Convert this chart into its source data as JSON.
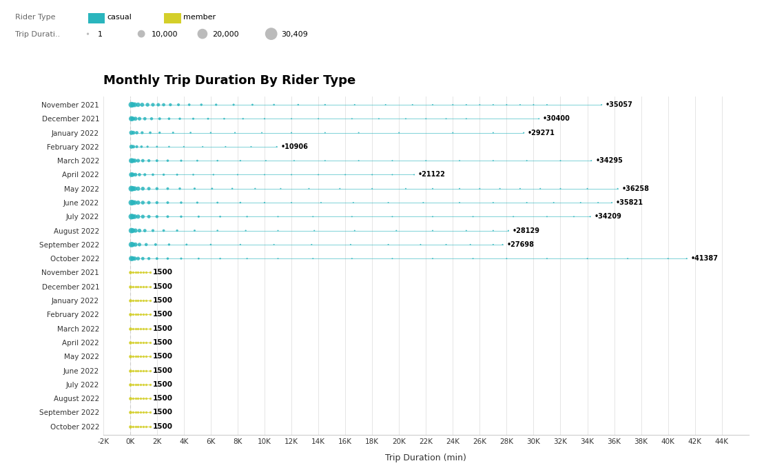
{
  "title": "Monthly Trip Duration By Rider Type",
  "xlabel": "Trip Duration (min)",
  "casual_color": "#2ab5bd",
  "member_color": "#d4cf2a",
  "background_color": "#ffffff",
  "months": [
    "November 2021",
    "December 2021",
    "January 2022",
    "February 2022",
    "March 2022",
    "April 2022",
    "May 2022",
    "June 2022",
    "July 2022",
    "August 2022",
    "September 2022",
    "October 2022"
  ],
  "casual_max": [
    35057,
    30400,
    29271,
    10906,
    34295,
    21122,
    36258,
    35821,
    34209,
    28129,
    27698,
    41387
  ],
  "member_max_label": 1500,
  "xlim": [
    -2000,
    46000
  ],
  "xtick_vals": [
    -2000,
    0,
    2000,
    4000,
    6000,
    8000,
    10000,
    12000,
    14000,
    16000,
    18000,
    20000,
    22000,
    24000,
    26000,
    28000,
    30000,
    32000,
    34000,
    36000,
    38000,
    40000,
    42000,
    44000
  ],
  "xticklabels": [
    "-2K",
    "0K",
    "2K",
    "4K",
    "6K",
    "8K",
    "10K",
    "12K",
    "14K",
    "16K",
    "18K",
    "20K",
    "22K",
    "24K",
    "26K",
    "28K",
    "30K",
    "32K",
    "34K",
    "36K",
    "38K",
    "40K",
    "42K",
    "44K"
  ],
  "casual_dots": {
    "November 2021": [
      100,
      200,
      350,
      600,
      900,
      1300,
      1700,
      2100,
      2500,
      3000,
      3600,
      4400,
      5300,
      6400,
      7700,
      9100,
      10700,
      12500,
      14500,
      16700,
      19000,
      21000,
      22500,
      24000,
      25000,
      26000,
      27000,
      28000,
      29000,
      30000,
      31000,
      35057
    ],
    "December 2021": [
      100,
      200,
      400,
      700,
      1100,
      1600,
      2200,
      2900,
      3700,
      4700,
      5800,
      7000,
      8400,
      10000,
      12000,
      14000,
      16500,
      18500,
      20500,
      22000,
      23500,
      25000,
      30400
    ],
    "January 2022": [
      100,
      250,
      500,
      900,
      1500,
      2200,
      3200,
      4500,
      6000,
      7800,
      9800,
      12000,
      14500,
      17000,
      20000,
      24000,
      27000,
      29271
    ],
    "February 2022": [
      100,
      250,
      500,
      850,
      1300,
      2000,
      2900,
      4000,
      5400,
      7100,
      9000,
      10906
    ],
    "March 2022": [
      100,
      200,
      350,
      600,
      950,
      1400,
      2000,
      2800,
      3800,
      5000,
      6500,
      8200,
      10100,
      12200,
      14500,
      17000,
      19500,
      22000,
      24500,
      27000,
      29500,
      32000,
      34295
    ],
    "April 2022": [
      100,
      200,
      400,
      700,
      1100,
      1700,
      2500,
      3500,
      4700,
      6200,
      8000,
      10000,
      12000,
      14000,
      16000,
      18000,
      19500,
      21122
    ],
    "May 2022": [
      100,
      200,
      350,
      600,
      950,
      1400,
      2000,
      2800,
      3700,
      4800,
      6100,
      7600,
      9300,
      11200,
      13300,
      15600,
      18000,
      20500,
      22500,
      24500,
      26000,
      27500,
      29000,
      30500,
      32000,
      34000,
      36258
    ],
    "June 2022": [
      100,
      200,
      350,
      600,
      950,
      1400,
      2000,
      2800,
      3800,
      5000,
      6500,
      8200,
      10000,
      12000,
      14200,
      16600,
      19200,
      21800,
      24500,
      27000,
      29500,
      31500,
      33500,
      34800,
      35821
    ],
    "July 2022": [
      100,
      200,
      350,
      600,
      950,
      1400,
      2000,
      2800,
      3800,
      5100,
      6700,
      8700,
      11000,
      13600,
      16500,
      19500,
      22500,
      25500,
      28500,
      31000,
      33000,
      34209
    ],
    "August 2022": [
      100,
      200,
      400,
      700,
      1100,
      1700,
      2500,
      3500,
      4800,
      6500,
      8600,
      11000,
      13700,
      16700,
      19800,
      22500,
      25000,
      27000,
      28129
    ],
    "September 2022": [
      100,
      200,
      400,
      700,
      1200,
      1900,
      2900,
      4200,
      6000,
      8200,
      10700,
      13500,
      16400,
      19200,
      21600,
      23500,
      25300,
      27000,
      27698
    ],
    "October 2022": [
      100,
      200,
      350,
      600,
      950,
      1400,
      2000,
      2800,
      3800,
      5100,
      6700,
      8700,
      11000,
      13600,
      16500,
      19500,
      22500,
      25500,
      28000,
      31000,
      34000,
      37000,
      40000,
      41387
    ]
  },
  "casual_dot_counts": {
    "November 2021": [
      5000,
      4000,
      3500,
      3000,
      2500,
      2200,
      2000,
      1800,
      1600,
      1400,
      1200,
      1000,
      900,
      800,
      700,
      600,
      500,
      430,
      370,
      310,
      260,
      220,
      180,
      150,
      120,
      100,
      80,
      60,
      50,
      40,
      30,
      1
    ],
    "December 2021": [
      4000,
      3000,
      2500,
      2000,
      1700,
      1400,
      1200,
      1000,
      850,
      700,
      600,
      500,
      420,
      350,
      280,
      220,
      170,
      140,
      110,
      90,
      70,
      55,
      1
    ],
    "January 2022": [
      3000,
      2200,
      1700,
      1300,
      1000,
      800,
      650,
      500,
      400,
      320,
      250,
      200,
      160,
      130,
      100,
      75,
      55,
      1
    ],
    "February 2022": [
      2500,
      1800,
      1300,
      1000,
      750,
      580,
      440,
      330,
      250,
      190,
      140,
      1
    ],
    "March 2022": [
      4000,
      3200,
      2600,
      2100,
      1700,
      1400,
      1100,
      900,
      730,
      580,
      460,
      370,
      290,
      230,
      180,
      140,
      110,
      85,
      65,
      50,
      38,
      28,
      1
    ],
    "April 2022": [
      3500,
      2700,
      2100,
      1600,
      1300,
      1000,
      800,
      640,
      510,
      400,
      310,
      240,
      190,
      150,
      120,
      95,
      75,
      1
    ],
    "May 2022": [
      5000,
      4000,
      3300,
      2700,
      2200,
      1800,
      1400,
      1100,
      900,
      720,
      570,
      450,
      350,
      275,
      215,
      168,
      130,
      100,
      80,
      62,
      48,
      38,
      30,
      23,
      18,
      14,
      1
    ],
    "June 2022": [
      5000,
      4000,
      3300,
      2700,
      2200,
      1800,
      1400,
      1100,
      900,
      720,
      570,
      450,
      350,
      270,
      210,
      165,
      128,
      100,
      78,
      60,
      46,
      36,
      28,
      20,
      1
    ],
    "July 2022": [
      5000,
      4000,
      3300,
      2700,
      2200,
      1800,
      1400,
      1100,
      870,
      690,
      540,
      420,
      330,
      255,
      200,
      154,
      120,
      92,
      70,
      54,
      40,
      1
    ],
    "August 2022": [
      4500,
      3500,
      2800,
      2200,
      1700,
      1300,
      1020,
      790,
      610,
      470,
      360,
      275,
      210,
      160,
      120,
      92,
      70,
      52,
      1
    ],
    "September 2022": [
      4500,
      3500,
      2700,
      2000,
      1500,
      1120,
      840,
      620,
      460,
      340,
      250,
      185,
      138,
      103,
      77,
      58,
      43,
      30,
      1
    ],
    "October 2022": [
      4000,
      3200,
      2600,
      2100,
      1700,
      1400,
      1100,
      880,
      700,
      555,
      440,
      348,
      274,
      216,
      170,
      133,
      104,
      81,
      64,
      50,
      39,
      30,
      23,
      1
    ]
  }
}
